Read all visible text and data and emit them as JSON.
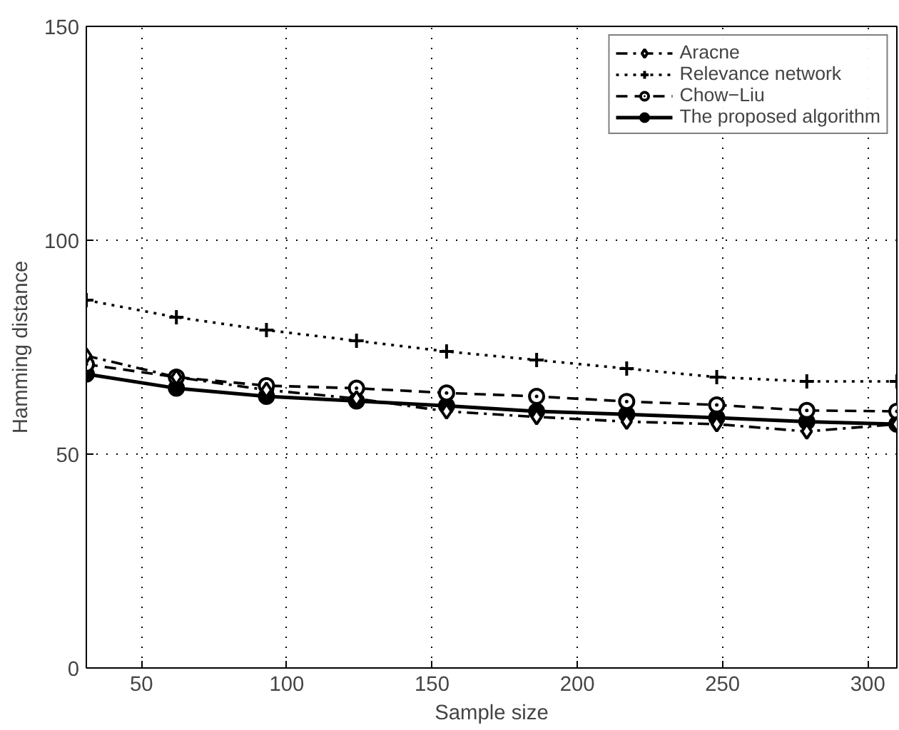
{
  "chart_data": {
    "type": "line",
    "xlabel": "Sample size",
    "ylabel": "Hamming distance",
    "x": [
      31,
      62,
      93,
      124,
      155,
      186,
      217,
      248,
      279,
      310
    ],
    "series": [
      {
        "name": "Aracne",
        "color": "#000000",
        "marker": "diamond",
        "line_style": "dashdot",
        "values": [
          73,
          68,
          65,
          63,
          60,
          58.7,
          57.6,
          57,
          55.3,
          57
        ]
      },
      {
        "name": "Relevance network",
        "color": "#000000",
        "marker": "cross",
        "line_style": "dotted",
        "values": [
          86,
          82,
          79,
          76.5,
          74,
          72,
          70,
          68,
          67,
          67
        ]
      },
      {
        "name": "Chow−Liu",
        "color": "#000000",
        "marker": "circle_dot",
        "line_style": "dashed",
        "values": [
          71,
          68,
          66,
          65.4,
          64.3,
          63.5,
          62.3,
          61.5,
          60.2,
          60
        ]
      },
      {
        "name": "The proposed algorithm",
        "color": "#000000",
        "marker": "circle",
        "line_style": "solid",
        "values": [
          68.7,
          65.4,
          63.5,
          62.4,
          61.3,
          60,
          59.3,
          58.5,
          57.6,
          57
        ]
      }
    ],
    "xlim": [
      31,
      310
    ],
    "ylim": [
      0,
      150
    ],
    "xticks": [
      50,
      100,
      150,
      200,
      250,
      300
    ],
    "yticks": [
      0,
      50,
      100,
      150
    ],
    "grid": true,
    "legend": "top right"
  }
}
